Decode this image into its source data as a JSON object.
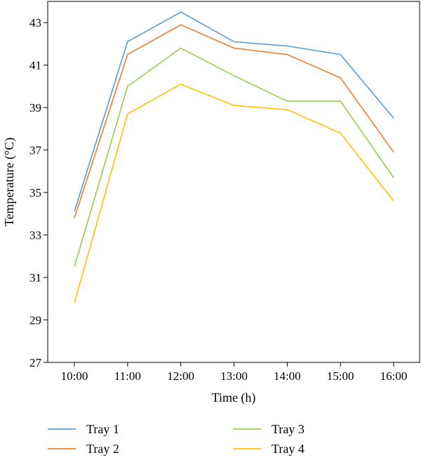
{
  "chart_data": {
    "type": "line",
    "title": "",
    "xlabel": "Time (h)",
    "ylabel": "Temperature (°C)",
    "categories": [
      "10:00",
      "11:00",
      "12:00",
      "13:00",
      "14:00",
      "15:00",
      "16:00"
    ],
    "ylim": [
      27,
      44
    ],
    "yticks": [
      27,
      29,
      31,
      33,
      35,
      37,
      39,
      41,
      43
    ],
    "grid": false,
    "legend_position": "bottom",
    "series": [
      {
        "name": "Tray 1",
        "color": "#5b9bd5",
        "values": [
          34.1,
          42.1,
          43.5,
          42.1,
          41.9,
          41.5,
          38.5
        ]
      },
      {
        "name": "Tray 2",
        "color": "#ed7d31",
        "values": [
          33.8,
          41.5,
          42.9,
          41.8,
          41.5,
          40.4,
          36.9
        ]
      },
      {
        "name": "Tray 3",
        "color": "#92d050",
        "values": [
          31.5,
          40.0,
          41.8,
          40.5,
          39.3,
          39.3,
          35.7
        ]
      },
      {
        "name": "Tray 4",
        "color": "#ffc000",
        "values": [
          29.8,
          38.7,
          40.1,
          39.1,
          38.9,
          37.8,
          34.6
        ]
      }
    ]
  }
}
